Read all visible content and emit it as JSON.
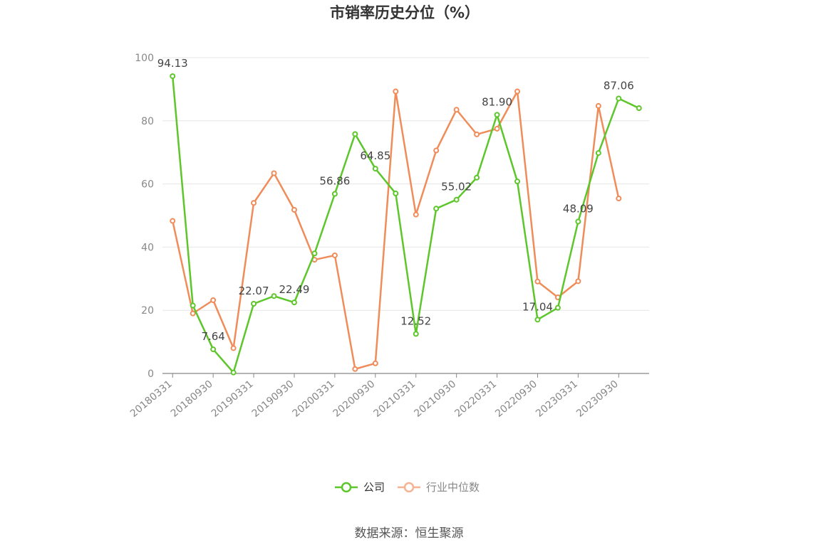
{
  "chart_data": {
    "type": "line",
    "title": "市销率历史分位（%）",
    "source": "数据来源：恒生聚源",
    "ylim": [
      0,
      100
    ],
    "yticks": [
      0,
      20,
      40,
      60,
      80,
      100
    ],
    "categories": [
      "20180331",
      "20180630",
      "20180930",
      "20181231",
      "20190331",
      "20190630",
      "20190930",
      "20191231",
      "20200331",
      "20200630",
      "20200930",
      "20201231",
      "20210331",
      "20210630",
      "20210930",
      "20211231",
      "20220331",
      "20220630",
      "20220930",
      "20221231",
      "20230331",
      "20230630",
      "20230930",
      "20231231"
    ],
    "xticks": [
      "20180331",
      "20180930",
      "20190331",
      "20190930",
      "20200331",
      "20200930",
      "20210331",
      "20210930",
      "20220331",
      "20220930",
      "20230331",
      "20230930"
    ],
    "grid": true,
    "legend_position": "bottom",
    "series": [
      {
        "name": "公司",
        "color": "#5cc62a",
        "values": [
          94.13,
          21.5,
          7.64,
          0.3,
          22.07,
          24.5,
          22.49,
          38.0,
          56.86,
          75.8,
          64.85,
          57.0,
          12.52,
          52.2,
          55.02,
          62.0,
          81.9,
          60.8,
          17.04,
          20.8,
          48.09,
          69.8,
          87.06,
          84.0
        ],
        "labels": {
          "0": "94.13",
          "2": "7.64",
          "4": "22.07",
          "6": "22.49",
          "8": "56.86",
          "10": "64.85",
          "12": "12.52",
          "14": "55.02",
          "16": "81.90",
          "18": "17.04",
          "20": "48.09",
          "22": "87.06"
        }
      },
      {
        "name": "行业中位数",
        "color": "#f08c5a",
        "values": [
          48.3,
          19.0,
          23.2,
          8.0,
          54.0,
          63.4,
          51.8,
          36.0,
          37.4,
          1.4,
          3.2,
          89.3,
          50.3,
          70.6,
          83.5,
          75.7,
          77.5,
          89.3,
          29.1,
          24.1,
          29.2,
          84.7,
          55.4,
          null
        ]
      }
    ]
  }
}
